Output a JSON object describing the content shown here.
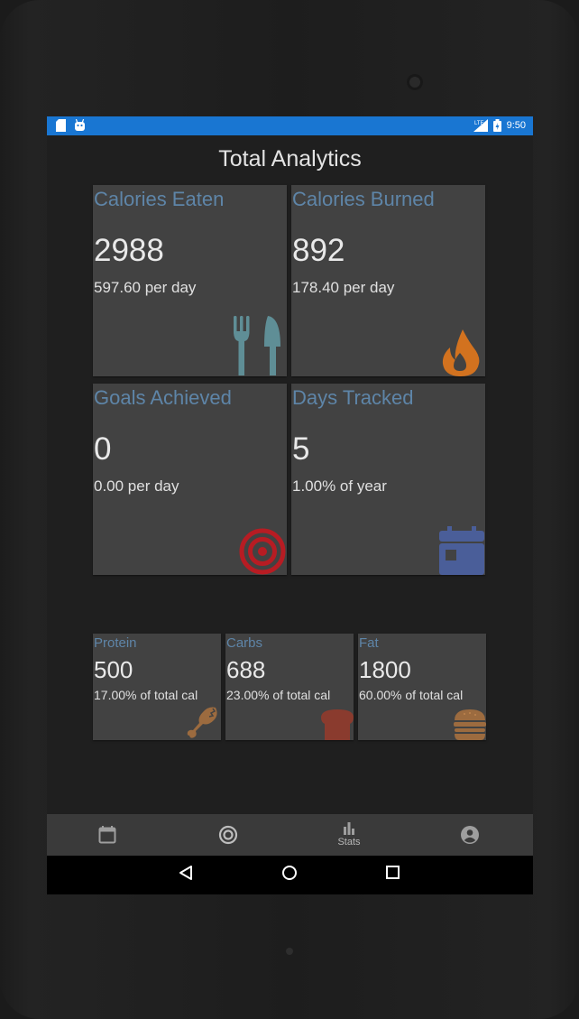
{
  "status_bar": {
    "time": "9:50",
    "network": "LTE"
  },
  "page": {
    "title": "Total Analytics"
  },
  "cards": [
    {
      "title": "Calories Eaten",
      "value": "2988",
      "sub": "597.60 per day",
      "icon": "fork-knife-icon",
      "icon_color": "#5f8e96"
    },
    {
      "title": "Calories Burned",
      "value": "892",
      "sub": "178.40 per day",
      "icon": "flame-icon",
      "icon_color": "#d2721f"
    },
    {
      "title": "Goals Achieved",
      "value": "0",
      "sub": "0.00 per day",
      "icon": "target-icon",
      "icon_color": "#b71c23"
    },
    {
      "title": "Days Tracked",
      "value": "5",
      "sub": "1.00% of year",
      "icon": "calendar-icon",
      "icon_color": "#4a5e99"
    }
  ],
  "macros": [
    {
      "title": "Protein",
      "value": "500",
      "sub": "17.00% of total cal",
      "icon": "drumstick-icon",
      "icon_color": "#9c6b3f"
    },
    {
      "title": "Carbs",
      "value": "688",
      "sub": "23.00% of total cal",
      "icon": "bread-icon",
      "icon_color": "#8a3b2e"
    },
    {
      "title": "Fat",
      "value": "1800",
      "sub": "60.00% of total cal",
      "icon": "burger-icon",
      "icon_color": "#9c6b3f"
    }
  ],
  "bottom_nav": [
    {
      "name": "calendar",
      "label": ""
    },
    {
      "name": "goals",
      "label": ""
    },
    {
      "name": "stats",
      "label": "Stats"
    },
    {
      "name": "profile",
      "label": ""
    }
  ],
  "colors": {
    "accent": "#1976d2",
    "card_title": "#5e85a8",
    "card_bg": "#424242"
  }
}
